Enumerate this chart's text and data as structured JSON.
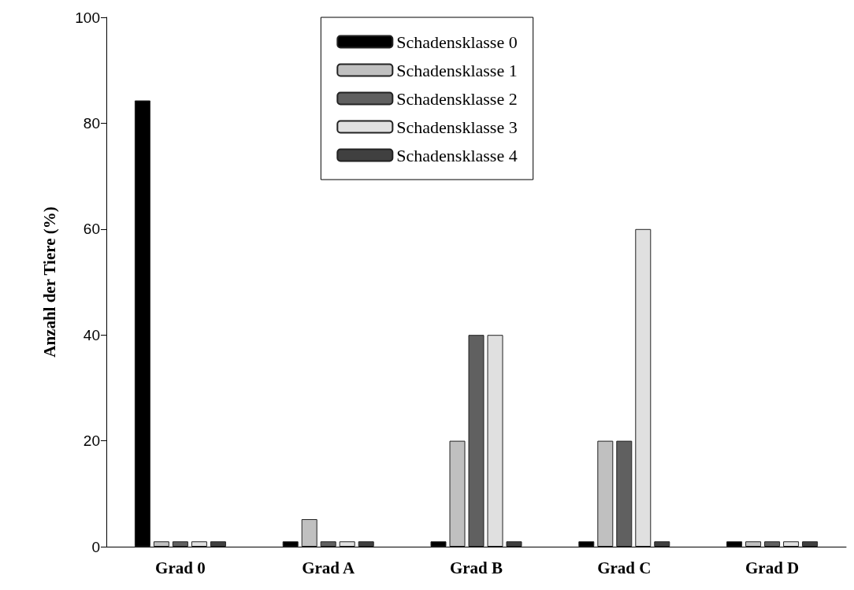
{
  "chart_data": {
    "type": "bar",
    "ylabel": "Anzahl der Tiere (%)",
    "categories": [
      "Grad 0",
      "Grad A",
      "Grad B",
      "Grad C",
      "Grad D"
    ],
    "series": [
      {
        "name": "Schadensklasse 0",
        "color": "#000000",
        "values": [
          84.3,
          1,
          1,
          1,
          1
        ]
      },
      {
        "name": "Schadensklasse 1",
        "color": "#c0c0c0",
        "values": [
          1,
          5.2,
          20,
          20,
          1
        ]
      },
      {
        "name": "Schadensklasse 2",
        "color": "#606060",
        "values": [
          1,
          1,
          40,
          20,
          1
        ]
      },
      {
        "name": "Schadensklasse 3",
        "color": "#e0e0e0",
        "values": [
          1,
          1,
          40,
          60,
          1
        ]
      },
      {
        "name": "Schadensklasse 4",
        "color": "#404040",
        "values": [
          1,
          1,
          1,
          1,
          1
        ]
      }
    ],
    "ylim": [
      0,
      100
    ],
    "yticks": [
      0,
      20,
      40,
      60,
      80,
      100
    ],
    "grid": false,
    "legend": "top"
  }
}
